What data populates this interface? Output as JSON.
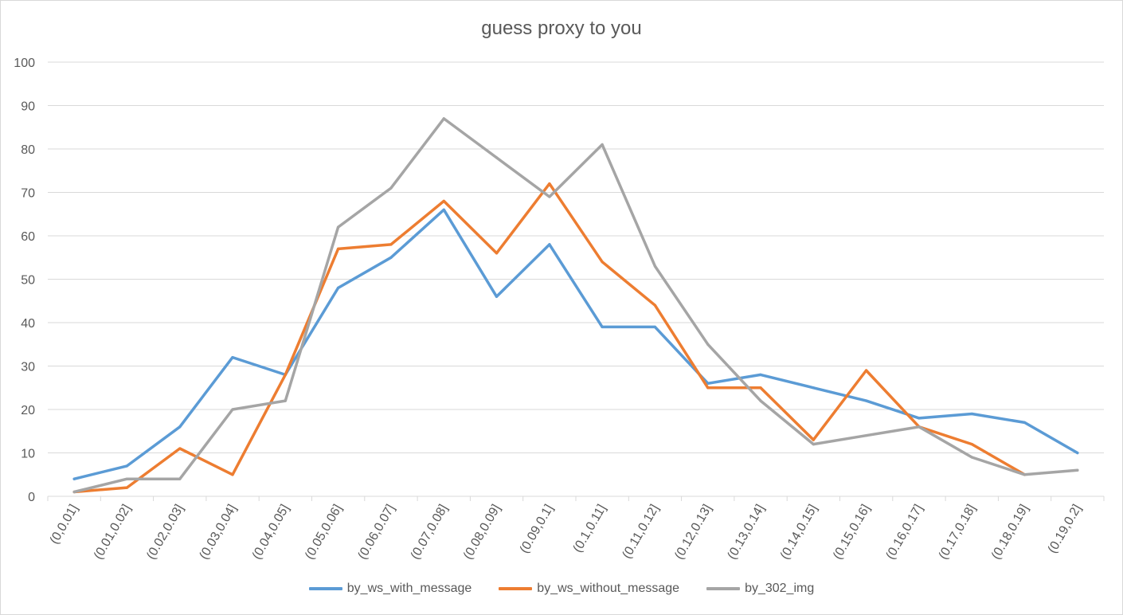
{
  "chart_data": {
    "type": "line",
    "title": "guess proxy to you",
    "xlabel": "",
    "ylabel": "",
    "ylim": [
      0,
      100
    ],
    "yticks": [
      0,
      10,
      20,
      30,
      40,
      50,
      60,
      70,
      80,
      90,
      100
    ],
    "grid": true,
    "legend_position": "bottom",
    "categories": [
      "(0,0.01]",
      "(0.01,0.02]",
      "(0.02,0.03]",
      "(0.03,0.04]",
      "(0.04,0.05]",
      "(0.05,0.06]",
      "(0.06,0.07]",
      "(0.07,0.08]",
      "(0.08,0.09]",
      "(0.09,0.1]",
      "(0.1,0.11]",
      "(0.11,0.12]",
      "(0.12,0.13]",
      "(0.13,0.14]",
      "(0.14,0.15]",
      "(0.15,0.16]",
      "(0.16,0.17]",
      "(0.17,0.18]",
      "(0.18,0.19]",
      "(0.19,0.2]"
    ],
    "series": [
      {
        "name": "by_ws_with_message",
        "color": "#5b9bd5",
        "values": [
          4,
          7,
          16,
          32,
          28,
          48,
          55,
          66,
          46,
          58,
          39,
          39,
          26,
          28,
          25,
          22,
          18,
          19,
          17,
          10
        ]
      },
      {
        "name": "by_ws_without_message",
        "color": "#ed7d31",
        "values": [
          1,
          2,
          11,
          5,
          28,
          57,
          58,
          68,
          56,
          72,
          54,
          44,
          25,
          25,
          13,
          29,
          16,
          12,
          5,
          null
        ]
      },
      {
        "name": "by_302_img",
        "color": "#a5a5a5",
        "values": [
          1,
          4,
          4,
          20,
          22,
          62,
          71,
          87,
          78,
          69,
          81,
          53,
          35,
          22,
          12,
          14,
          16,
          9,
          5,
          6
        ]
      }
    ]
  }
}
